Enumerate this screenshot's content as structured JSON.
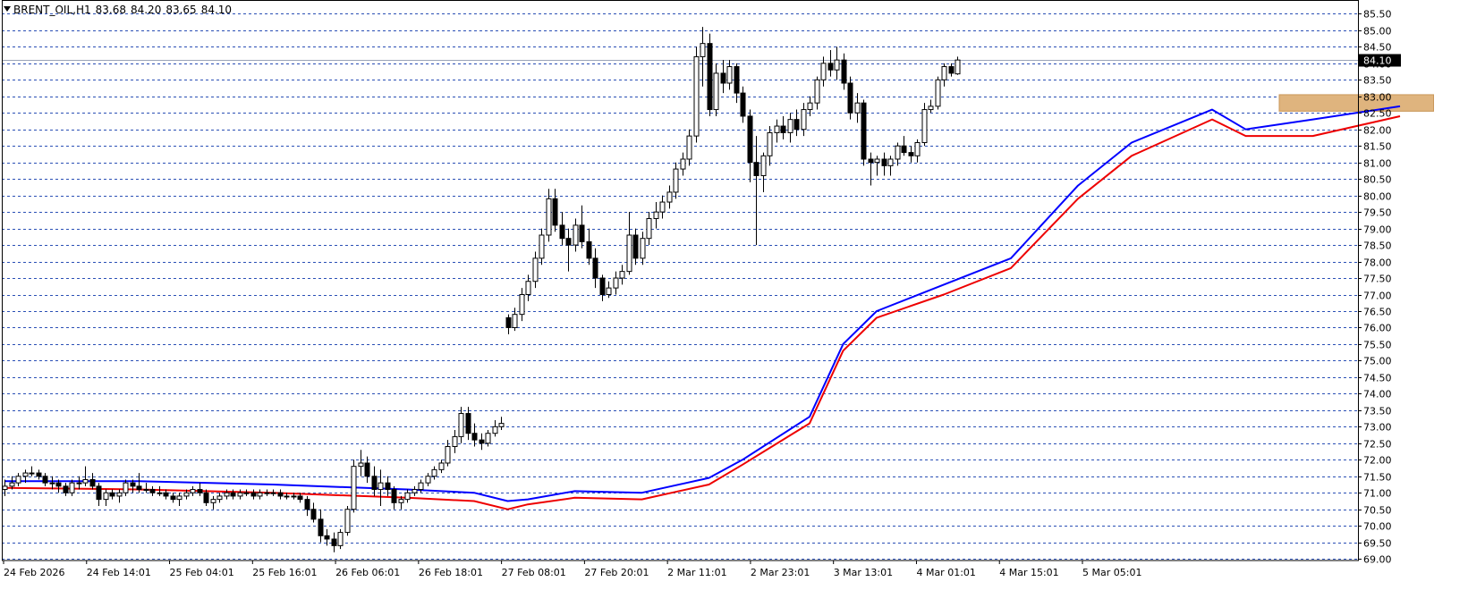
{
  "header": {
    "symbol": "BRENT_OIL,H1",
    "open": "83.68",
    "high": "84.20",
    "low": "83.65",
    "close": "84.10"
  },
  "colors": {
    "grid": "#2a4fb5",
    "candle": "#000000",
    "ma_fast": "#0000ff",
    "ma_slow": "#ee0000",
    "zone": "#dfb47e",
    "price_label_bg": "#000000",
    "price_label_fg": "#ffffff"
  },
  "chart_data": {
    "type": "candlestick",
    "timeframe": "H1",
    "ylim": [
      68.95,
      85.7
    ],
    "y_ticks": [
      "85.50",
      "85.00",
      "84.50",
      "84.00",
      "83.50",
      "83.00",
      "82.50",
      "82.00",
      "81.50",
      "81.00",
      "80.50",
      "80.00",
      "79.50",
      "79.00",
      "78.50",
      "78.00",
      "77.50",
      "77.00",
      "76.50",
      "76.00",
      "75.50",
      "75.00",
      "74.50",
      "74.00",
      "73.50",
      "73.00",
      "72.50",
      "72.00",
      "71.50",
      "71.00",
      "70.50",
      "70.00",
      "69.50",
      "69.00"
    ],
    "x_ticks": [
      "24 Feb 2026",
      "24 Feb 14:01",
      "25 Feb 04:01",
      "25 Feb 16:01",
      "26 Feb 06:01",
      "26 Feb 18:01",
      "27 Feb 08:01",
      "27 Feb 20:01",
      "2 Mar 11:01",
      "2 Mar 23:01",
      "3 Mar 13:01",
      "4 Mar 01:01",
      "4 Mar 15:01",
      "5 Mar 05:01"
    ],
    "current_price": "84.10",
    "last_price_line": 84.1,
    "zone": {
      "from_bar": 190,
      "to_bar": 213,
      "low": 82.55,
      "high": 83.05
    },
    "series": [
      {
        "name": "",
        "kind": "ma",
        "color": "#0000ff",
        "points": [
          [
            0,
            71.35
          ],
          [
            20,
            71.35
          ],
          [
            40,
            71.25
          ],
          [
            60,
            71.1
          ],
          [
            70,
            71.0
          ],
          [
            75,
            70.75
          ],
          [
            78,
            70.8
          ],
          [
            85,
            71.05
          ],
          [
            95,
            71.0
          ],
          [
            105,
            71.45
          ],
          [
            110,
            72.0
          ],
          [
            120,
            73.3
          ],
          [
            125,
            75.5
          ],
          [
            130,
            76.5
          ],
          [
            140,
            77.3
          ],
          [
            150,
            78.1
          ],
          [
            160,
            80.3
          ],
          [
            168,
            81.6
          ],
          [
            180,
            82.6
          ],
          [
            185,
            82.0
          ],
          [
            195,
            82.3
          ],
          [
            208,
            82.7
          ]
        ]
      },
      {
        "name": "",
        "kind": "ma",
        "color": "#ee0000",
        "points": [
          [
            0,
            71.15
          ],
          [
            20,
            71.1
          ],
          [
            40,
            71.0
          ],
          [
            60,
            70.85
          ],
          [
            70,
            70.75
          ],
          [
            75,
            70.5
          ],
          [
            78,
            70.65
          ],
          [
            85,
            70.85
          ],
          [
            95,
            70.8
          ],
          [
            105,
            71.25
          ],
          [
            110,
            71.85
          ],
          [
            120,
            73.1
          ],
          [
            125,
            75.3
          ],
          [
            130,
            76.3
          ],
          [
            140,
            77.0
          ],
          [
            150,
            77.8
          ],
          [
            160,
            79.9
          ],
          [
            168,
            81.2
          ],
          [
            180,
            82.3
          ],
          [
            185,
            81.8
          ],
          [
            195,
            81.8
          ],
          [
            208,
            82.4
          ]
        ]
      }
    ],
    "candles": [
      [
        71.1,
        71.4,
        70.9,
        71.2
      ],
      [
        71.2,
        71.5,
        71.1,
        71.3
      ],
      [
        71.3,
        71.6,
        71.2,
        71.5
      ],
      [
        71.5,
        71.7,
        71.3,
        71.6
      ],
      [
        71.6,
        71.8,
        71.5,
        71.6
      ],
      [
        71.6,
        71.7,
        71.4,
        71.5
      ],
      [
        71.5,
        71.6,
        71.2,
        71.3
      ],
      [
        71.3,
        71.5,
        71.1,
        71.3
      ],
      [
        71.3,
        71.4,
        71.0,
        71.2
      ],
      [
        71.2,
        71.3,
        70.9,
        71.0
      ],
      [
        71.0,
        71.4,
        70.9,
        71.3
      ],
      [
        71.3,
        71.5,
        71.1,
        71.3
      ],
      [
        71.3,
        71.8,
        71.2,
        71.4
      ],
      [
        71.4,
        71.6,
        71.1,
        71.2
      ],
      [
        71.2,
        71.3,
        70.6,
        70.8
      ],
      [
        70.8,
        71.1,
        70.6,
        71.0
      ],
      [
        71.0,
        71.1,
        70.8,
        70.9
      ],
      [
        70.9,
        71.1,
        70.7,
        71.0
      ],
      [
        71.0,
        71.4,
        70.9,
        71.3
      ],
      [
        71.3,
        71.4,
        71.0,
        71.2
      ],
      [
        71.2,
        71.6,
        71.0,
        71.1
      ],
      [
        71.1,
        71.3,
        71.0,
        71.1
      ],
      [
        71.1,
        71.2,
        70.9,
        71.0
      ],
      [
        71.0,
        71.2,
        70.9,
        71.0
      ],
      [
        71.0,
        71.1,
        70.8,
        70.9
      ],
      [
        70.9,
        71.0,
        70.7,
        70.8
      ],
      [
        70.8,
        71.0,
        70.6,
        70.9
      ],
      [
        70.9,
        71.1,
        70.8,
        71.0
      ],
      [
        71.0,
        71.2,
        70.9,
        71.1
      ],
      [
        71.1,
        71.3,
        70.9,
        71.0
      ],
      [
        71.0,
        71.1,
        70.6,
        70.7
      ],
      [
        70.7,
        70.9,
        70.5,
        70.8
      ],
      [
        70.8,
        71.0,
        70.7,
        70.9
      ],
      [
        70.9,
        71.1,
        70.8,
        71.0
      ],
      [
        71.0,
        71.1,
        70.8,
        70.9
      ],
      [
        70.9,
        71.1,
        70.8,
        71.0
      ],
      [
        71.0,
        71.1,
        70.9,
        71.0
      ],
      [
        71.0,
        71.1,
        70.8,
        70.9
      ],
      [
        70.9,
        71.1,
        70.8,
        71.0
      ],
      [
        71.0,
        71.1,
        70.9,
        71.0
      ],
      [
        71.0,
        71.1,
        70.9,
        71.0
      ],
      [
        71.0,
        71.1,
        70.8,
        70.9
      ],
      [
        70.9,
        71.0,
        70.8,
        70.9
      ],
      [
        70.9,
        71.0,
        70.8,
        70.9
      ],
      [
        70.9,
        71.0,
        70.7,
        70.8
      ],
      [
        70.8,
        70.9,
        70.3,
        70.5
      ],
      [
        70.5,
        70.7,
        70.1,
        70.2
      ],
      [
        70.2,
        70.5,
        69.5,
        69.7
      ],
      [
        69.7,
        69.9,
        69.4,
        69.6
      ],
      [
        69.6,
        69.8,
        69.2,
        69.4
      ],
      [
        69.4,
        69.9,
        69.3,
        69.8
      ],
      [
        69.8,
        70.6,
        69.7,
        70.5
      ],
      [
        70.5,
        72.0,
        70.4,
        71.8
      ],
      [
        71.8,
        72.3,
        71.5,
        71.9
      ],
      [
        71.9,
        72.1,
        71.3,
        71.5
      ],
      [
        71.5,
        71.8,
        70.9,
        71.1
      ],
      [
        71.1,
        71.7,
        70.6,
        71.3
      ],
      [
        71.3,
        71.5,
        70.9,
        71.1
      ],
      [
        71.1,
        71.2,
        70.5,
        70.7
      ],
      [
        70.7,
        70.9,
        70.5,
        70.8
      ],
      [
        70.8,
        71.1,
        70.7,
        71.0
      ],
      [
        71.0,
        71.2,
        70.9,
        71.1
      ],
      [
        71.1,
        71.4,
        71.0,
        71.3
      ],
      [
        71.3,
        71.6,
        71.2,
        71.5
      ],
      [
        71.5,
        71.8,
        71.4,
        71.7
      ],
      [
        71.7,
        72.0,
        71.6,
        71.9
      ],
      [
        71.9,
        72.6,
        71.8,
        72.4
      ],
      [
        72.4,
        72.9,
        72.2,
        72.7
      ],
      [
        72.7,
        73.6,
        72.5,
        73.4
      ],
      [
        73.4,
        73.6,
        72.6,
        72.8
      ],
      [
        72.8,
        73.1,
        72.4,
        72.6
      ],
      [
        72.6,
        72.8,
        72.3,
        72.5
      ],
      [
        72.5,
        72.9,
        72.4,
        72.8
      ],
      [
        72.8,
        73.2,
        72.7,
        73.0
      ],
      [
        73.0,
        73.3,
        72.9,
        73.1
      ],
      [
        76.3,
        76.4,
        75.8,
        76.0
      ],
      [
        76.0,
        76.6,
        75.9,
        76.4
      ],
      [
        76.4,
        77.2,
        76.2,
        77.0
      ],
      [
        77.0,
        77.6,
        76.8,
        77.4
      ],
      [
        77.4,
        78.3,
        77.2,
        78.1
      ],
      [
        78.1,
        79.0,
        77.9,
        78.8
      ],
      [
        78.8,
        80.2,
        78.6,
        79.9
      ],
      [
        79.9,
        80.2,
        78.9,
        79.1
      ],
      [
        79.1,
        79.5,
        78.5,
        78.7
      ],
      [
        78.7,
        79.0,
        77.7,
        78.5
      ],
      [
        78.5,
        79.3,
        78.3,
        79.1
      ],
      [
        79.1,
        79.7,
        78.4,
        78.6
      ],
      [
        78.6,
        79.0,
        77.9,
        78.1
      ],
      [
        78.1,
        78.4,
        77.2,
        77.5
      ],
      [
        77.5,
        77.6,
        76.8,
        77.0
      ],
      [
        77.0,
        77.4,
        76.9,
        77.2
      ],
      [
        77.2,
        77.7,
        77.0,
        77.5
      ],
      [
        77.5,
        77.9,
        77.3,
        77.7
      ],
      [
        77.7,
        79.5,
        77.6,
        78.8
      ],
      [
        78.8,
        79.0,
        77.9,
        78.1
      ],
      [
        78.1,
        78.9,
        77.9,
        78.7
      ],
      [
        78.7,
        79.5,
        78.5,
        79.3
      ],
      [
        79.3,
        79.8,
        79.0,
        79.5
      ],
      [
        79.5,
        80.0,
        79.3,
        79.8
      ],
      [
        79.8,
        80.3,
        79.6,
        80.1
      ],
      [
        80.1,
        81.0,
        79.9,
        80.8
      ],
      [
        80.8,
        81.3,
        80.6,
        81.1
      ],
      [
        81.1,
        82.0,
        80.9,
        81.8
      ],
      [
        81.8,
        84.5,
        81.6,
        84.2
      ],
      [
        84.2,
        85.1,
        83.3,
        84.6
      ],
      [
        84.6,
        84.9,
        82.4,
        82.6
      ],
      [
        82.6,
        84.0,
        82.4,
        83.7
      ],
      [
        83.7,
        84.1,
        83.1,
        83.4
      ],
      [
        83.4,
        84.1,
        83.2,
        83.9
      ],
      [
        83.9,
        84.0,
        82.8,
        83.1
      ],
      [
        83.1,
        83.3,
        82.2,
        82.4
      ],
      [
        82.4,
        82.6,
        80.4,
        81.0
      ],
      [
        81.0,
        81.8,
        78.5,
        80.6
      ],
      [
        80.6,
        81.3,
        80.1,
        81.2
      ],
      [
        81.2,
        82.1,
        80.9,
        81.9
      ],
      [
        81.9,
        82.3,
        81.6,
        82.1
      ],
      [
        82.1,
        82.4,
        81.7,
        81.9
      ],
      [
        81.9,
        82.5,
        81.6,
        82.3
      ],
      [
        82.3,
        82.6,
        81.8,
        82.0
      ],
      [
        82.0,
        82.8,
        81.8,
        82.6
      ],
      [
        82.6,
        83.0,
        82.4,
        82.8
      ],
      [
        82.8,
        83.6,
        82.6,
        83.5
      ],
      [
        83.5,
        84.2,
        83.3,
        84.0
      ],
      [
        84.0,
        84.4,
        83.6,
        83.8
      ],
      [
        83.8,
        84.5,
        83.5,
        84.1
      ],
      [
        84.1,
        84.3,
        83.2,
        83.4
      ],
      [
        83.4,
        83.6,
        82.3,
        82.5
      ],
      [
        82.5,
        83.1,
        82.2,
        82.8
      ],
      [
        82.8,
        82.9,
        80.9,
        81.1
      ],
      [
        81.1,
        81.3,
        80.3,
        81.0
      ],
      [
        81.0,
        81.2,
        80.6,
        81.1
      ],
      [
        81.1,
        81.3,
        80.6,
        80.9
      ],
      [
        80.9,
        81.2,
        80.6,
        81.1
      ],
      [
        81.1,
        81.6,
        80.9,
        81.5
      ],
      [
        81.5,
        81.8,
        81.2,
        81.3
      ],
      [
        81.3,
        81.5,
        81.0,
        81.2
      ],
      [
        81.2,
        81.7,
        81.0,
        81.6
      ],
      [
        81.6,
        82.8,
        81.5,
        82.6
      ],
      [
        82.6,
        82.9,
        82.5,
        82.7
      ],
      [
        82.7,
        83.6,
        82.6,
        83.5
      ],
      [
        83.5,
        84.0,
        83.3,
        83.9
      ],
      [
        83.9,
        84.0,
        83.6,
        83.7
      ],
      [
        83.68,
        84.2,
        83.65,
        84.1
      ]
    ]
  }
}
